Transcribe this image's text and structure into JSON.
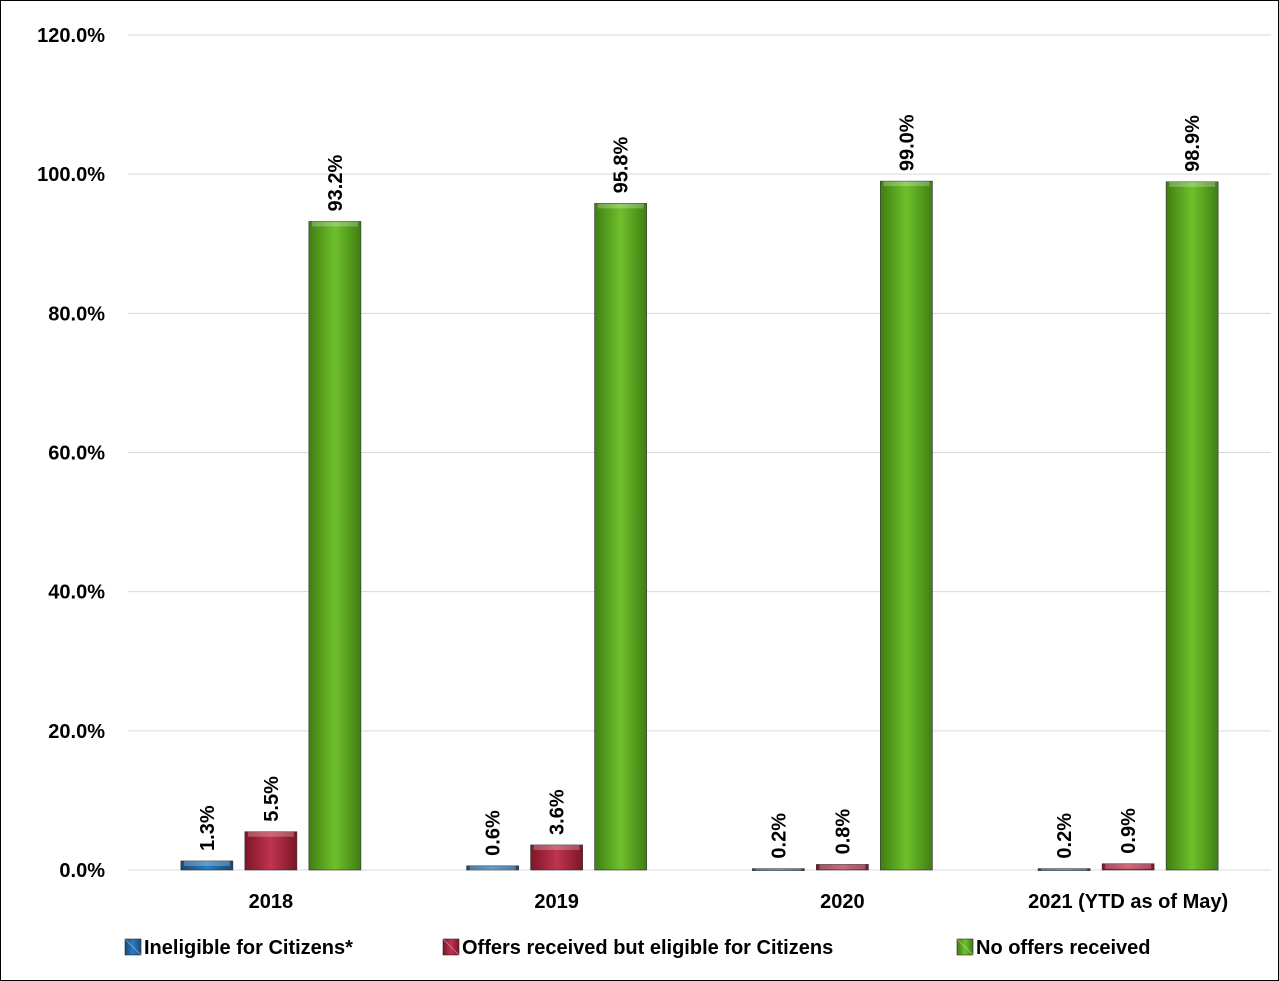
{
  "chart_data": {
    "type": "bar",
    "title": "",
    "xlabel": "",
    "ylabel": "",
    "categories": [
      "2018",
      "2019",
      "2020",
      "2021 (YTD as of May)"
    ],
    "series": [
      {
        "name": "Ineligible for Citizens*",
        "values": [
          1.3,
          0.6,
          0.2,
          0.2
        ],
        "labels": [
          "1.3%",
          "0.6%",
          "0.2%",
          "0.2%"
        ],
        "color": "#1f5f9a"
      },
      {
        "name": "Offers received but eligible for Citizens",
        "values": [
          5.5,
          3.6,
          0.8,
          0.9
        ],
        "labels": [
          "5.5%",
          "3.6%",
          "0.8%",
          "0.9%"
        ],
        "color": "#a8213a"
      },
      {
        "name": "No offers received",
        "values": [
          93.2,
          95.8,
          99.0,
          98.9
        ],
        "labels": [
          "93.2%",
          "95.8%",
          "99.0%",
          "98.9%"
        ],
        "color": "#5aa620"
      }
    ],
    "ylim": [
      0,
      120
    ],
    "yticks": [
      "0.0%",
      "20.0%",
      "40.0%",
      "60.0%",
      "80.0%",
      "100.0%",
      "120.0%"
    ],
    "ytick_values": [
      0,
      20,
      40,
      60,
      80,
      100,
      120
    ],
    "grid": true,
    "legend": "bottom",
    "data_label_rotation": "vertical"
  }
}
